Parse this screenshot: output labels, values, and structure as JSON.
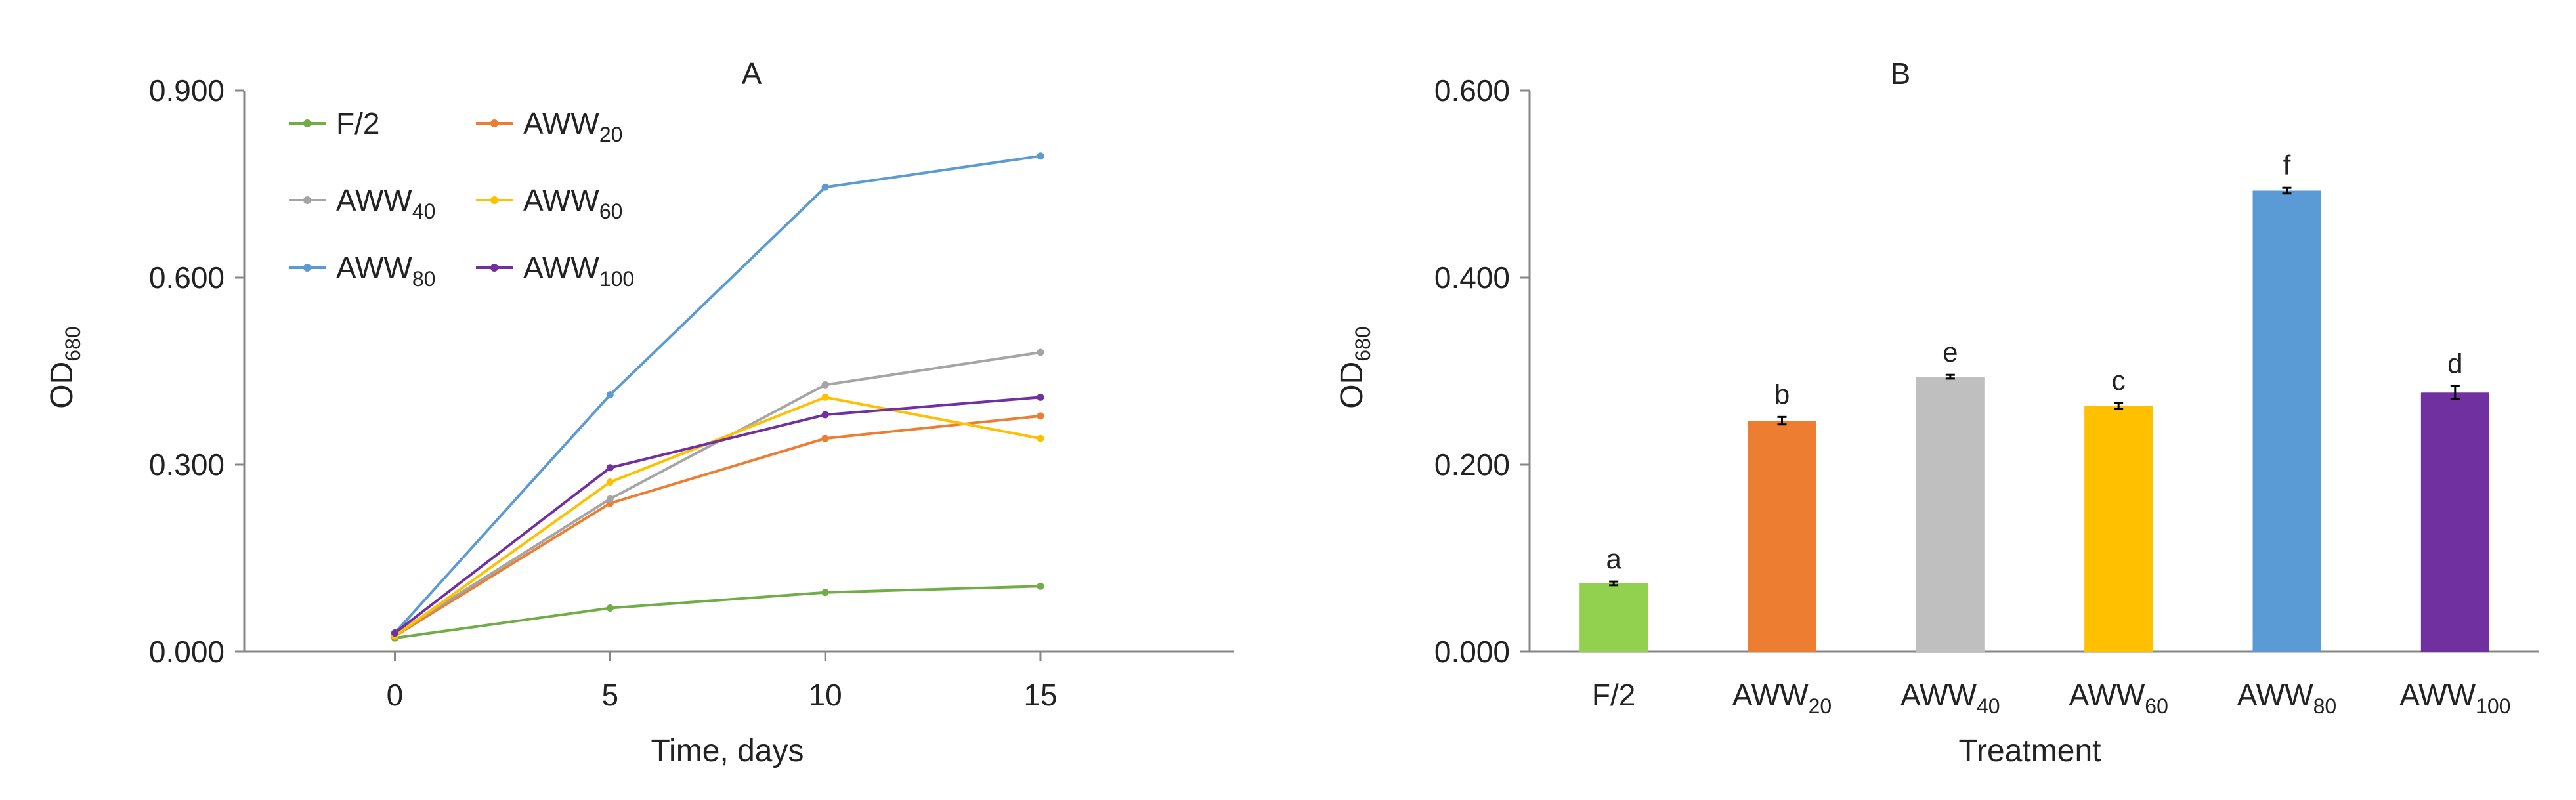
{
  "chart_data": [
    {
      "type": "line",
      "panel_label": "A",
      "xlabel": "Time, days",
      "ylabel": {
        "main": "OD",
        "sub": "680"
      },
      "x": [
        0,
        5,
        10,
        15
      ],
      "x_ticks": [
        "0",
        "5",
        "10",
        "15"
      ],
      "xlim": [
        -3.5,
        19.5
      ],
      "ylim": [
        0,
        0.9
      ],
      "y_ticks": [
        "0.000",
        "0.300",
        "0.600",
        "0.900"
      ],
      "grid": false,
      "legend_position": "top-left",
      "series": [
        {
          "name": {
            "main": "F/2",
            "sub": ""
          },
          "color": "#70ad47",
          "values": [
            0.022,
            0.07,
            0.095,
            0.105
          ]
        },
        {
          "name": {
            "main": "AWW",
            "sub": "20"
          },
          "color": "#ed7d31",
          "values": [
            0.025,
            0.238,
            0.342,
            0.378
          ]
        },
        {
          "name": {
            "main": "AWW",
            "sub": "40"
          },
          "color": "#a5a5a5",
          "values": [
            0.028,
            0.245,
            0.428,
            0.48
          ]
        },
        {
          "name": {
            "main": "AWW",
            "sub": "60"
          },
          "color": "#ffc000",
          "values": [
            0.025,
            0.272,
            0.408,
            0.342
          ]
        },
        {
          "name": {
            "main": "AWW",
            "sub": "80"
          },
          "color": "#5b9bd5",
          "values": [
            0.03,
            0.412,
            0.745,
            0.795
          ]
        },
        {
          "name": {
            "main": "AWW",
            "sub": "100"
          },
          "color": "#7030a0",
          "values": [
            0.03,
            0.295,
            0.38,
            0.408
          ]
        }
      ]
    },
    {
      "type": "bar",
      "panel_label": "B",
      "xlabel": "Treatment",
      "ylabel": {
        "main": "OD",
        "sub": "680"
      },
      "ylim": [
        0,
        0.6
      ],
      "y_ticks": [
        "0.000",
        "0.200",
        "0.400",
        "0.600"
      ],
      "grid": false,
      "categories": [
        {
          "main": "F/2",
          "sub": ""
        },
        {
          "main": "AWW",
          "sub": "20"
        },
        {
          "main": "AWW",
          "sub": "40"
        },
        {
          "main": "AWW",
          "sub": "60"
        },
        {
          "main": "AWW",
          "sub": "80"
        },
        {
          "main": "AWW",
          "sub": "100"
        }
      ],
      "values": [
        0.073,
        0.247,
        0.294,
        0.263,
        0.493,
        0.277
      ],
      "errors": [
        0.002,
        0.004,
        0.002,
        0.003,
        0.003,
        0.007
      ],
      "significance": [
        "a",
        "b",
        "e",
        "c",
        "f",
        "d"
      ],
      "colors": [
        "#92d050",
        "#ed7d31",
        "#bfbfbf",
        "#ffc000",
        "#5b9bd5",
        "#7030a0"
      ]
    }
  ]
}
